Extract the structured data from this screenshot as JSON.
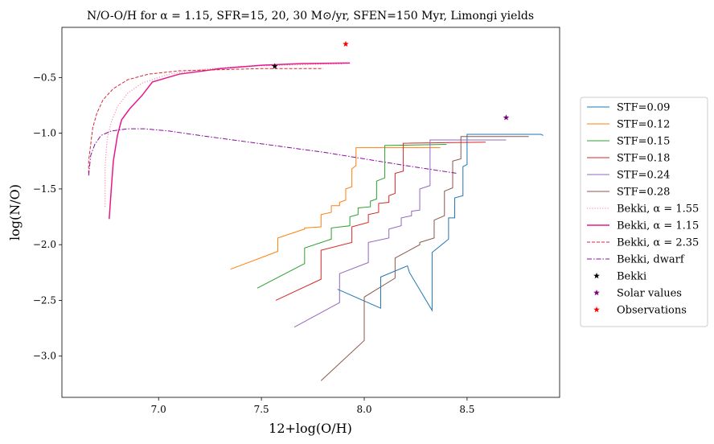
{
  "chart_data": {
    "type": "line",
    "title": "N/O-O/H for α = 1.15, SFR=15, 20, 30 M⊙/yr, SFEN=150 Myr, Limongi yields",
    "xlabel": "12+log(O/H)",
    "ylabel": "log(N/O)",
    "xlim": [
      6.53,
      8.95
    ],
    "ylim": [
      -3.37,
      -0.05
    ],
    "xticks": [
      7.0,
      7.5,
      8.0,
      8.5
    ],
    "xtick_labels": [
      "7.0",
      "7.5",
      "8.0",
      "8.5"
    ],
    "yticks": [
      -0.5,
      -1.0,
      -1.5,
      -2.0,
      -2.5,
      -3.0
    ],
    "ytick_labels": [
      "−0.5",
      "−1.0",
      "−1.5",
      "−2.0",
      "−2.5",
      "−3.0"
    ],
    "grid": false,
    "legend_position": "outside right",
    "series": [
      {
        "name": "STF=0.09",
        "color": "#1f77b4",
        "style": "solid",
        "width": 1,
        "x": [
          7.87,
          8.08,
          8.08,
          8.21,
          8.22,
          8.33,
          8.33,
          8.41,
          8.41,
          8.44,
          8.44,
          8.48,
          8.48,
          8.5,
          8.5,
          8.86,
          8.87
        ],
        "y": [
          -2.4,
          -2.57,
          -2.29,
          -2.19,
          -2.25,
          -2.59,
          -2.07,
          -1.95,
          -1.76,
          -1.76,
          -1.58,
          -1.56,
          -1.3,
          -1.28,
          -1.01,
          -1.01,
          -1.02
        ]
      },
      {
        "name": "STF=0.12",
        "color": "#ff7f0e",
        "style": "solid",
        "width": 1,
        "x": [
          7.35,
          7.58,
          7.58,
          7.71,
          7.71,
          7.79,
          7.79,
          7.84,
          7.84,
          7.88,
          7.88,
          7.91,
          7.91,
          7.94,
          7.94,
          7.96,
          7.96,
          8.37
        ],
        "y": [
          -2.22,
          -2.06,
          -1.94,
          -1.86,
          -1.85,
          -1.84,
          -1.73,
          -1.71,
          -1.65,
          -1.65,
          -1.62,
          -1.6,
          -1.5,
          -1.48,
          -1.32,
          -1.29,
          -1.13,
          -1.13
        ]
      },
      {
        "name": "STF=0.15",
        "color": "#2ca02c",
        "style": "solid",
        "width": 1,
        "x": [
          7.48,
          7.71,
          7.71,
          7.84,
          7.84,
          7.93,
          7.93,
          7.97,
          7.97,
          8.03,
          8.03,
          8.06,
          8.06,
          8.1,
          8.1,
          8.4
        ],
        "y": [
          -2.39,
          -2.17,
          -2.03,
          -1.95,
          -1.85,
          -1.83,
          -1.75,
          -1.73,
          -1.67,
          -1.66,
          -1.61,
          -1.59,
          -1.43,
          -1.4,
          -1.11,
          -1.1
        ]
      },
      {
        "name": "STF=0.18",
        "color": "#d62728",
        "style": "solid",
        "width": 1,
        "x": [
          7.57,
          7.79,
          7.79,
          7.94,
          7.94,
          8.02,
          8.02,
          8.07,
          8.07,
          8.12,
          8.12,
          8.15,
          8.15,
          8.19,
          8.19,
          8.59
        ],
        "y": [
          -2.5,
          -2.31,
          -2.05,
          -1.98,
          -1.84,
          -1.8,
          -1.73,
          -1.71,
          -1.63,
          -1.62,
          -1.56,
          -1.54,
          -1.36,
          -1.34,
          -1.09,
          -1.08
        ]
      },
      {
        "name": "STF=0.24",
        "color": "#9467bd",
        "style": "solid",
        "width": 1,
        "x": [
          7.66,
          7.88,
          7.88,
          8.02,
          8.02,
          8.12,
          8.12,
          8.18,
          8.18,
          8.23,
          8.23,
          8.27,
          8.27,
          8.32,
          8.32,
          8.69
        ],
        "y": [
          -2.74,
          -2.52,
          -2.26,
          -2.16,
          -1.98,
          -1.94,
          -1.86,
          -1.83,
          -1.76,
          -1.74,
          -1.7,
          -1.69,
          -1.5,
          -1.47,
          -1.06,
          -1.06
        ]
      },
      {
        "name": "STF=0.28",
        "color": "#8c564b",
        "style": "solid",
        "width": 1,
        "x": [
          7.79,
          8.0,
          8.0,
          8.15,
          8.15,
          8.27,
          8.27,
          8.34,
          8.34,
          8.39,
          8.39,
          8.43,
          8.43,
          8.47,
          8.47,
          8.8
        ],
        "y": [
          -3.22,
          -2.86,
          -2.47,
          -2.3,
          -2.12,
          -2.0,
          -1.98,
          -1.94,
          -1.78,
          -1.74,
          -1.52,
          -1.49,
          -1.25,
          -1.23,
          -1.03,
          -1.03
        ]
      },
      {
        "name": "Bekki, α = 1.55",
        "color": "#f07c9c",
        "style": "dotted",
        "width": 1,
        "x": [
          6.74,
          6.74,
          6.75,
          6.77,
          6.8,
          6.85,
          6.92,
          7.05,
          7.2,
          7.4,
          7.6,
          7.8,
          7.9
        ],
        "y": [
          -1.66,
          -1.3,
          -1.05,
          -0.9,
          -0.76,
          -0.64,
          -0.55,
          -0.47,
          -0.43,
          -0.4,
          -0.39,
          -0.38,
          -0.38
        ]
      },
      {
        "name": "Bekki, α = 1.15",
        "color": "#e8188c",
        "style": "solid",
        "width": 1.5,
        "x": [
          6.76,
          6.77,
          6.78,
          6.8,
          6.82,
          6.86,
          6.92,
          6.97,
          7.1,
          7.3,
          7.5,
          7.7,
          7.9,
          7.93
        ],
        "y": [
          -1.77,
          -1.5,
          -1.25,
          -1.02,
          -0.88,
          -0.78,
          -0.66,
          -0.54,
          -0.47,
          -0.42,
          -0.39,
          -0.375,
          -0.37,
          -0.37
        ]
      },
      {
        "name": "Bekki, α = 2.35",
        "color": "#d62738",
        "style": "dashed",
        "width": 1,
        "x": [
          6.66,
          6.66,
          6.67,
          6.68,
          6.7,
          6.73,
          6.78,
          6.85,
          6.95,
          7.1,
          7.3,
          7.5,
          7.8
        ],
        "y": [
          -1.36,
          -1.25,
          -1.1,
          -0.95,
          -0.82,
          -0.7,
          -0.6,
          -0.52,
          -0.47,
          -0.44,
          -0.43,
          -0.42,
          -0.42
        ]
      },
      {
        "name": "Bekki, dwarf",
        "color": "#8a0a9c",
        "style": "dashdot",
        "width": 1,
        "x": [
          6.66,
          6.67,
          6.69,
          6.72,
          6.77,
          6.85,
          6.93,
          7.05,
          7.2,
          7.4,
          7.6,
          7.8,
          8.0,
          8.2,
          8.45
        ],
        "y": [
          -1.38,
          -1.2,
          -1.1,
          -1.02,
          -0.98,
          -0.96,
          -0.96,
          -0.98,
          -1.02,
          -1.07,
          -1.12,
          -1.17,
          -1.23,
          -1.29,
          -1.36
        ]
      }
    ],
    "points": [
      {
        "name": "Bekki",
        "color": "#000000",
        "marker": "star",
        "x": 7.565,
        "y": -0.4
      },
      {
        "name": "Solar values",
        "color": "#7f007f",
        "marker": "star",
        "x": 8.69,
        "y": -0.86
      },
      {
        "name": "Observations",
        "color": "#ff0000",
        "marker": "star",
        "x": 7.91,
        "y": -0.2
      }
    ]
  }
}
